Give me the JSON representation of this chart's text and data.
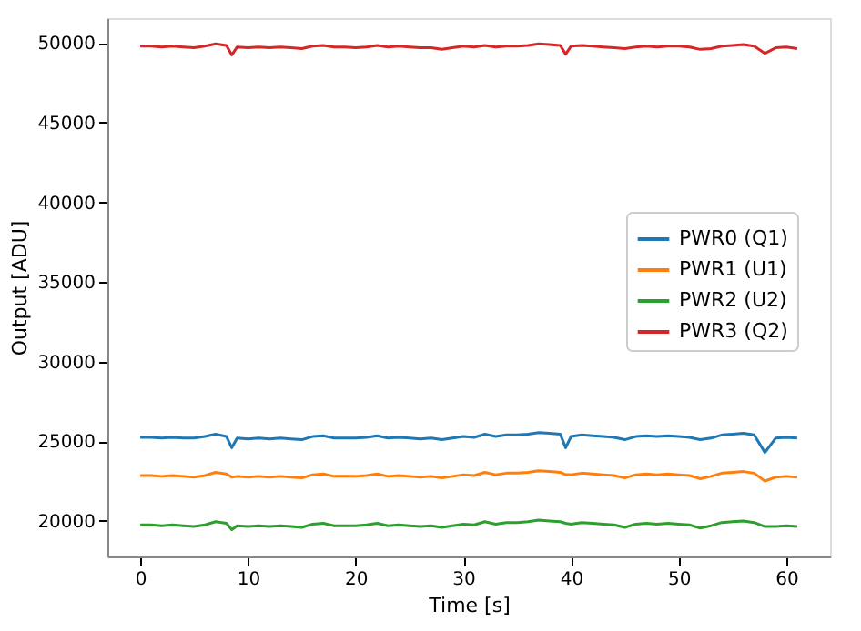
{
  "chart_data": {
    "type": "line",
    "xlabel": "Time [s]",
    "ylabel": "Output [ADU]",
    "x": [
      0,
      1,
      2,
      3,
      4,
      5,
      6,
      7,
      8,
      8.5,
      9,
      10,
      11,
      12,
      13,
      14,
      15,
      16,
      17,
      18,
      19,
      20,
      21,
      22,
      23,
      24,
      25,
      26,
      27,
      28,
      29,
      30,
      31,
      32,
      33,
      34,
      35,
      36,
      37,
      38,
      39,
      39.5,
      40,
      41,
      42,
      43,
      44,
      45,
      46,
      47,
      48,
      49,
      50,
      51,
      52,
      53,
      54,
      55,
      56,
      57,
      58,
      59,
      60,
      61
    ],
    "series": [
      {
        "name": "PWR0 (Q1)",
        "color": "#1f77b4",
        "values": [
          25250,
          25250,
          25200,
          25250,
          25200,
          25200,
          25300,
          25450,
          25300,
          24600,
          25200,
          25150,
          25200,
          25150,
          25200,
          25150,
          25100,
          25300,
          25350,
          25200,
          25200,
          25200,
          25250,
          25350,
          25200,
          25250,
          25200,
          25150,
          25200,
          25100,
          25200,
          25300,
          25250,
          25450,
          25300,
          25400,
          25400,
          25450,
          25550,
          25500,
          25450,
          24600,
          25300,
          25400,
          25350,
          25300,
          25250,
          25100,
          25300,
          25350,
          25300,
          25350,
          25300,
          25250,
          25100,
          25200,
          25400,
          25450,
          25500,
          25400,
          24300,
          25200,
          25250,
          25200
        ]
      },
      {
        "name": "PWR1 (U1)",
        "color": "#ff7f0e",
        "values": [
          22850,
          22850,
          22800,
          22850,
          22800,
          22750,
          22850,
          23050,
          22950,
          22750,
          22800,
          22750,
          22800,
          22750,
          22800,
          22750,
          22700,
          22900,
          22950,
          22800,
          22800,
          22800,
          22850,
          22950,
          22800,
          22850,
          22800,
          22750,
          22800,
          22700,
          22800,
          22900,
          22850,
          23050,
          22900,
          23000,
          23000,
          23050,
          23150,
          23100,
          23050,
          22900,
          22900,
          23000,
          22950,
          22900,
          22850,
          22700,
          22900,
          22950,
          22900,
          22950,
          22900,
          22850,
          22650,
          22800,
          23000,
          23050,
          23100,
          23000,
          22500,
          22750,
          22800,
          22750
        ]
      },
      {
        "name": "PWR2 (U2)",
        "color": "#2ca02c",
        "values": [
          19750,
          19750,
          19700,
          19750,
          19700,
          19650,
          19750,
          19950,
          19850,
          19450,
          19700,
          19650,
          19700,
          19650,
          19700,
          19650,
          19600,
          19800,
          19850,
          19700,
          19700,
          19700,
          19750,
          19850,
          19700,
          19750,
          19700,
          19650,
          19700,
          19600,
          19700,
          19800,
          19750,
          19950,
          19800,
          19900,
          19900,
          19950,
          20050,
          20000,
          19950,
          19850,
          19800,
          19900,
          19850,
          19800,
          19750,
          19600,
          19800,
          19850,
          19800,
          19850,
          19800,
          19750,
          19550,
          19700,
          19900,
          19950,
          20000,
          19900,
          19650,
          19650,
          19700,
          19650
        ]
      },
      {
        "name": "PWR3 (Q2)",
        "color": "#d62728",
        "values": [
          49800,
          49800,
          49750,
          49800,
          49750,
          49700,
          49800,
          49950,
          49850,
          49250,
          49750,
          49700,
          49750,
          49700,
          49750,
          49700,
          49650,
          49800,
          49850,
          49750,
          49750,
          49700,
          49750,
          49850,
          49750,
          49800,
          49750,
          49700,
          49700,
          49600,
          49700,
          49800,
          49750,
          49850,
          49750,
          49800,
          49800,
          49850,
          49950,
          49900,
          49850,
          49300,
          49800,
          49850,
          49800,
          49750,
          49700,
          49650,
          49750,
          49800,
          49750,
          49800,
          49800,
          49750,
          49600,
          49650,
          49800,
          49850,
          49900,
          49800,
          49350,
          49700,
          49750,
          49650
        ]
      }
    ],
    "xlim": [
      -3.05,
      64.05
    ],
    "xticks": [
      0,
      10,
      20,
      30,
      40,
      50,
      60
    ],
    "ylim": [
      17770,
      51560
    ],
    "yticks": [
      20000,
      25000,
      30000,
      35000,
      40000,
      45000,
      50000
    ],
    "grid": false,
    "legend": "right",
    "marker": "none",
    "line_style": "solid"
  }
}
